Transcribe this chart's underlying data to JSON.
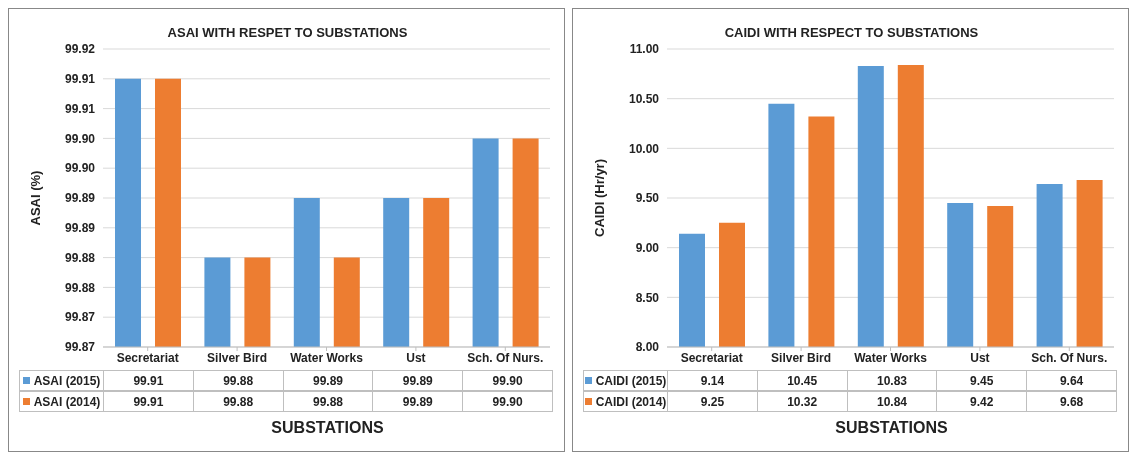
{
  "chart_data": [
    {
      "type": "bar",
      "title": "ASAI WITH RESPET TO SUBSTATIONS",
      "xlabel": "SUBSTATIONS",
      "ylabel": "ASAI (%)",
      "categories": [
        "Secretariat",
        "Silver Bird",
        "Water Works",
        "Ust",
        "Sch. Of Nurs."
      ],
      "series": [
        {
          "name": "ASAI (2015)",
          "color": "#5b9bd5",
          "values": [
            99.91,
            99.88,
            99.89,
            99.89,
            99.9
          ],
          "value_labels": [
            "99.91",
            "99.88",
            "99.89",
            "99.89",
            "99.90"
          ]
        },
        {
          "name": "ASAI (2014)",
          "color": "#ed7d31",
          "values": [
            99.91,
            99.88,
            99.88,
            99.89,
            99.9
          ],
          "value_labels": [
            "99.91",
            "99.88",
            "99.88",
            "99.89",
            "99.90"
          ]
        }
      ],
      "ylim": [
        99.865,
        99.915
      ],
      "yticks": [
        {
          "value": 99.865,
          "label": "99.87"
        },
        {
          "value": 99.87,
          "label": "99.87"
        },
        {
          "value": 99.875,
          "label": "99.88"
        },
        {
          "value": 99.88,
          "label": "99.88"
        },
        {
          "value": 99.885,
          "label": "99.89"
        },
        {
          "value": 99.89,
          "label": "99.89"
        },
        {
          "value": 99.895,
          "label": "99.90"
        },
        {
          "value": 99.9,
          "label": "99.90"
        },
        {
          "value": 99.905,
          "label": "99.91"
        },
        {
          "value": 99.91,
          "label": "99.91"
        },
        {
          "value": 99.915,
          "label": "99.92"
        }
      ],
      "grid": "y",
      "legend": "bottom"
    },
    {
      "type": "bar",
      "title": "CAIDI WITH RESPECT TO SUBSTATIONS",
      "xlabel": "SUBSTATIONS",
      "ylabel": "CAIDI (Hr/yr)",
      "categories": [
        "Secretariat",
        "Silver Bird",
        "Water Works",
        "Ust",
        "Sch. Of Nurs."
      ],
      "series": [
        {
          "name": "CAIDI (2015)",
          "color": "#5b9bd5",
          "values": [
            9.14,
            10.45,
            10.83,
            9.45,
            9.64
          ]
        },
        {
          "name": "CAIDI (2014)",
          "color": "#ed7d31",
          "values": [
            9.25,
            10.32,
            10.84,
            9.42,
            9.68
          ]
        }
      ],
      "ylim": [
        8,
        11
      ],
      "yticks": [
        {
          "value": 8,
          "label": "8.00"
        },
        {
          "value": 8.5,
          "label": "8.50"
        },
        {
          "value": 9,
          "label": "9.00"
        },
        {
          "value": 9.5,
          "label": "9.50"
        },
        {
          "value": 10,
          "label": "10.00"
        },
        {
          "value": 10.5,
          "label": "10.50"
        },
        {
          "value": 11,
          "label": "11.00"
        }
      ],
      "grid": "y",
      "legend": "bottom",
      "data_labels": true
    }
  ]
}
